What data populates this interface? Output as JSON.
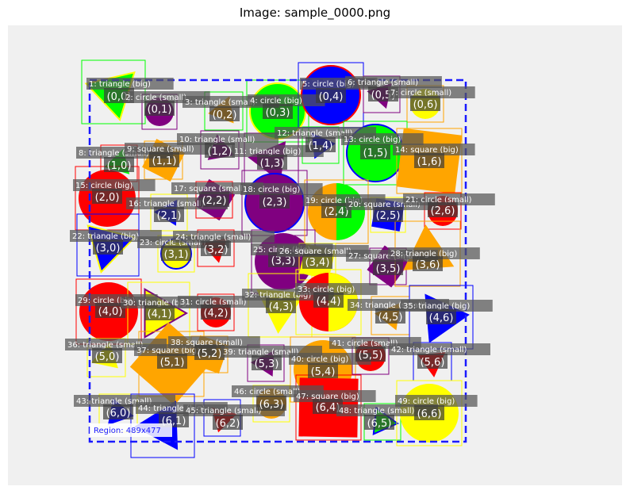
{
  "title": "Image: sample_0000.png",
  "region_label": "Region: 489x477",
  "colors": {
    "canvas_bg": "#f0f0f0",
    "region_border": "#1a1aff",
    "label_box": "#555555",
    "red": "#ff0000",
    "green": "#00ff00",
    "blue": "#0000ff",
    "yellow": "#ffff00",
    "orange": "#ffa500",
    "purple": "#800080"
  },
  "objects": [
    {
      "id": 1,
      "label": "1: triangle (big)",
      "grid": "(0,0)",
      "shape": "triangle",
      "size": "big",
      "color": "green",
      "accent": "yellow"
    },
    {
      "id": 2,
      "label": "2: circle (small)",
      "grid": "(0,1)",
      "shape": "circle",
      "size": "small",
      "color": "purple"
    },
    {
      "id": 3,
      "label": "3: triangle (small)",
      "grid": "(0,2)",
      "shape": "triangle",
      "size": "small",
      "color": "orange"
    },
    {
      "id": 4,
      "label": "4: circle (big)",
      "grid": "(0,3)",
      "shape": "circle",
      "size": "big",
      "color": "green",
      "accent": "yellow"
    },
    {
      "id": 5,
      "label": "5: circle (big)",
      "grid": "(0,4)",
      "shape": "circle",
      "size": "big",
      "color": "blue",
      "accent": "red"
    },
    {
      "id": 6,
      "label": "6: triangle (small)",
      "grid": "(0,5)",
      "shape": "triangle",
      "size": "small",
      "color": "purple"
    },
    {
      "id": 7,
      "label": "7: circle (small)",
      "grid": "(0,6)",
      "shape": "circle",
      "size": "small",
      "color": "yellow"
    },
    {
      "id": 8,
      "label": "8: triangle (small)",
      "grid": "(1,0)",
      "shape": "triangle",
      "size": "small",
      "color": "green"
    },
    {
      "id": 9,
      "label": "9: square (small)",
      "grid": "(1,1)",
      "shape": "square",
      "size": "small",
      "color": "orange"
    },
    {
      "id": 10,
      "label": "10: triangle (small)",
      "grid": "(1,2)",
      "shape": "triangle",
      "size": "small",
      "color": "purple"
    },
    {
      "id": 11,
      "label": "11: triangle (big)",
      "grid": "(1,3)",
      "shape": "triangle",
      "size": "big",
      "color": "purple"
    },
    {
      "id": 12,
      "label": "12: triangle (small)",
      "grid": "(1,4)",
      "shape": "triangle",
      "size": "small",
      "color": "blue"
    },
    {
      "id": 13,
      "label": "13: circle (big)",
      "grid": "(1,5)",
      "shape": "circle",
      "size": "big",
      "color": "green",
      "accent": "blue"
    },
    {
      "id": 14,
      "label": "14: square (big)",
      "grid": "(1,6)",
      "shape": "square",
      "size": "big",
      "color": "orange"
    },
    {
      "id": 15,
      "label": "15: circle (big)",
      "grid": "(2,0)",
      "shape": "circle",
      "size": "big",
      "color": "red"
    },
    {
      "id": 16,
      "label": "16: triangle (small)",
      "grid": "(2,1)",
      "shape": "triangle",
      "size": "small",
      "color": "blue"
    },
    {
      "id": 17,
      "label": "17: square (small)",
      "grid": "(2,2)",
      "shape": "square",
      "size": "small",
      "color": "purple"
    },
    {
      "id": 18,
      "label": "18: circle (big)",
      "grid": "(2,3)",
      "shape": "circle",
      "size": "big",
      "color": "purple",
      "accent": "blue"
    },
    {
      "id": 19,
      "label": "19: circle (big)",
      "grid": "(2,4)",
      "shape": "circle",
      "size": "big",
      "color": "orange",
      "accent": "green"
    },
    {
      "id": 20,
      "label": "20: square (small)",
      "grid": "(2,5)",
      "shape": "square",
      "size": "small",
      "color": "blue"
    },
    {
      "id": 21,
      "label": "21: circle (small)",
      "grid": "(2,6)",
      "shape": "circle",
      "size": "small",
      "color": "red"
    },
    {
      "id": 22,
      "label": "22: triangle (big)",
      "grid": "(3,0)",
      "shape": "triangle",
      "size": "big",
      "color": "blue",
      "accent": "yellow"
    },
    {
      "id": 23,
      "label": "23: circle (small)",
      "grid": "(3,1)",
      "shape": "circle",
      "size": "small",
      "color": "yellow",
      "accent": "blue"
    },
    {
      "id": 24,
      "label": "24: triangle (small)",
      "grid": "(3,2)",
      "shape": "triangle",
      "size": "small",
      "color": "red"
    },
    {
      "id": 25,
      "label": "25: circle (big)",
      "grid": "(3,3)",
      "shape": "circle",
      "size": "big",
      "color": "purple"
    },
    {
      "id": 26,
      "label": "26: square (small)",
      "grid": "(3,4)",
      "shape": "square",
      "size": "small",
      "color": "yellow"
    },
    {
      "id": 27,
      "label": "27: square (small)",
      "grid": "(3,5)",
      "shape": "square",
      "size": "small",
      "color": "purple"
    },
    {
      "id": 28,
      "label": "28: triangle (big)",
      "grid": "(3,6)",
      "shape": "triangle",
      "size": "big",
      "color": "orange"
    },
    {
      "id": 29,
      "label": "29: circle (big)",
      "grid": "(4,0)",
      "shape": "circle",
      "size": "big",
      "color": "red"
    },
    {
      "id": 30,
      "label": "30: triangle (big)",
      "grid": "(4,1)",
      "shape": "triangle",
      "size": "big",
      "color": "yellow",
      "accent": "purple"
    },
    {
      "id": 31,
      "label": "31: circle (small)",
      "grid": "(4,2)",
      "shape": "circle",
      "size": "small",
      "color": "red"
    },
    {
      "id": 32,
      "label": "32: triangle (big)",
      "grid": "(4,3)",
      "shape": "triangle",
      "size": "big",
      "color": "yellow"
    },
    {
      "id": 33,
      "label": "33: circle (big)",
      "grid": "(4,4)",
      "shape": "circle",
      "size": "big",
      "color": "red",
      "accent": "yellow"
    },
    {
      "id": 34,
      "label": "34: triangle (small)",
      "grid": "(4,5)",
      "shape": "triangle",
      "size": "small",
      "color": "orange"
    },
    {
      "id": 35,
      "label": "35: triangle (big)",
      "grid": "(4,6)",
      "shape": "triangle",
      "size": "big",
      "color": "blue"
    },
    {
      "id": 36,
      "label": "36: triangle (small)",
      "grid": "(5,0)",
      "shape": "triangle",
      "size": "small",
      "color": "yellow"
    },
    {
      "id": 37,
      "label": "37: square (big)",
      "grid": "(5,1)",
      "shape": "square",
      "size": "big",
      "color": "orange"
    },
    {
      "id": 38,
      "label": "38: square (small)",
      "grid": "(5,2)",
      "shape": "square",
      "size": "small",
      "color": "orange"
    },
    {
      "id": 39,
      "label": "39: triangle (small)",
      "grid": "(5,3)",
      "shape": "triangle",
      "size": "small",
      "color": "purple"
    },
    {
      "id": 40,
      "label": "40: circle (big)",
      "grid": "(5,4)",
      "shape": "circle",
      "size": "big",
      "color": "orange"
    },
    {
      "id": 41,
      "label": "41: circle (small)",
      "grid": "(5,5)",
      "shape": "circle",
      "size": "small",
      "color": "red"
    },
    {
      "id": 42,
      "label": "42: triangle (small)",
      "grid": "(5,6)",
      "shape": "triangle",
      "size": "small",
      "color": "red"
    },
    {
      "id": 43,
      "label": "43: triangle (small)",
      "grid": "(6,0)",
      "shape": "triangle",
      "size": "small",
      "color": "blue"
    },
    {
      "id": 44,
      "label": "44: triangle (big)",
      "grid": "(6,1)",
      "shape": "triangle",
      "size": "big",
      "color": "blue"
    },
    {
      "id": 45,
      "label": "45: triangle (small)",
      "grid": "(6,2)",
      "shape": "triangle",
      "size": "small",
      "color": "red"
    },
    {
      "id": 46,
      "label": "46: circle (small)",
      "grid": "(6,3)",
      "shape": "circle",
      "size": "small",
      "color": "orange"
    },
    {
      "id": 47,
      "label": "47: square (big)",
      "grid": "(6,4)",
      "shape": "square",
      "size": "big",
      "color": "red"
    },
    {
      "id": 48,
      "label": "48: triangle (small)",
      "grid": "(6,5)",
      "shape": "triangle",
      "size": "small",
      "color": "green",
      "accent": "blue"
    },
    {
      "id": 49,
      "label": "49: circle (big)",
      "grid": "(6,6)",
      "shape": "circle",
      "size": "big",
      "color": "yellow"
    }
  ]
}
